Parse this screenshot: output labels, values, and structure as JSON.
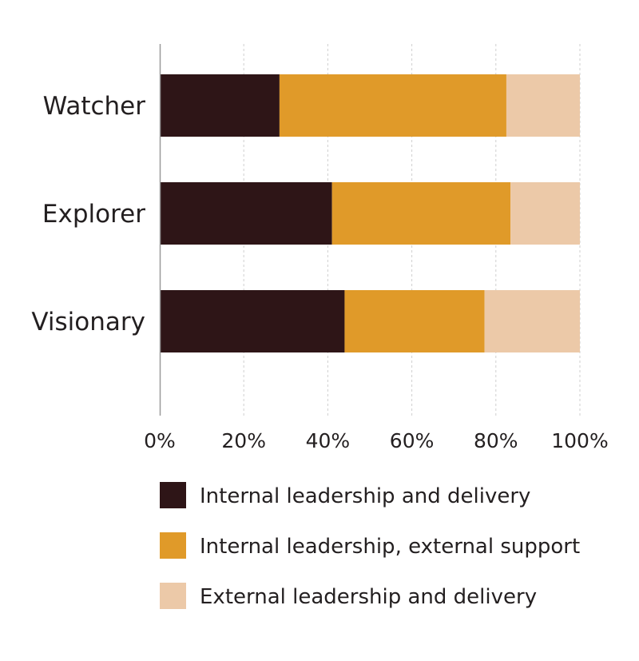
{
  "chart_data": {
    "type": "bar",
    "orientation": "horizontal",
    "stacked": true,
    "categories": [
      "Watcher",
      "Explorer",
      "Visionary"
    ],
    "series": [
      {
        "name": "Internal leadership and delivery",
        "values": [
          28.5,
          41,
          44
        ],
        "color": "#2e1517"
      },
      {
        "name": "Internal leadership, external support",
        "values": [
          54,
          42.5,
          33.3
        ],
        "color": "#e09a29"
      },
      {
        "name": "External leadership and delivery",
        "values": [
          17.5,
          16.5,
          22.7
        ],
        "color": "#ecc9a8"
      }
    ],
    "xlim": [
      0,
      100
    ],
    "x_ticks": [
      "0%",
      "20%",
      "40%",
      "60%",
      "80%",
      "100%"
    ],
    "grid": "vertical dashed",
    "legend_position": "bottom",
    "title": "",
    "xlabel": "",
    "ylabel": ""
  }
}
